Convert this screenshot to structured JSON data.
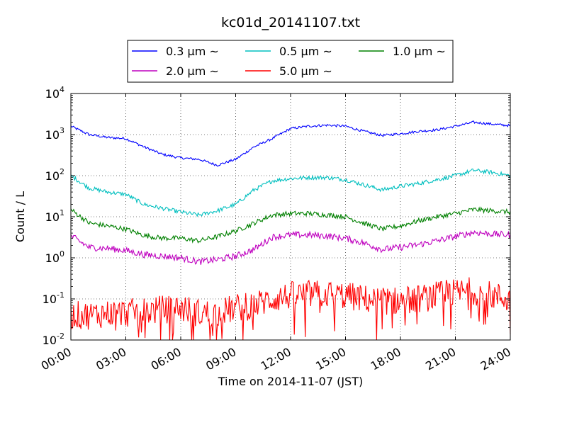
{
  "chart_data": {
    "type": "line",
    "title": "kc01d_20141107.txt",
    "xlabel": "Time on 2014-11-07 (JST)",
    "ylabel": "Count / L",
    "yscale": "log",
    "xlim": [
      "00:00",
      "24:00"
    ],
    "ylim": [
      0.01,
      10000
    ],
    "grid": true,
    "legend_placement": "top (above plot)",
    "x_tick_labels": [
      "00:00",
      "03:00",
      "06:00",
      "09:00",
      "12:00",
      "15:00",
      "18:00",
      "21:00",
      "24:00"
    ],
    "y_tick_labels": [
      {
        "base": "10",
        "exp": "-2"
      },
      {
        "base": "10",
        "exp": "-1"
      },
      {
        "base": "10",
        "exp": "0"
      },
      {
        "base": "10",
        "exp": "1"
      },
      {
        "base": "10",
        "exp": "2"
      },
      {
        "base": "10",
        "exp": "3"
      },
      {
        "base": "10",
        "exp": "4"
      }
    ],
    "x": [
      "00:00",
      "01:00",
      "02:00",
      "03:00",
      "04:00",
      "05:00",
      "06:00",
      "07:00",
      "08:00",
      "09:00",
      "10:00",
      "11:00",
      "12:00",
      "13:00",
      "14:00",
      "15:00",
      "16:00",
      "17:00",
      "18:00",
      "19:00",
      "20:00",
      "21:00",
      "22:00",
      "23:00",
      "24:00"
    ],
    "series": [
      {
        "name": "0.3 μm ~",
        "color": "#0000ff",
        "noise": 0.03,
        "values": [
          1600,
          1000,
          850,
          800,
          500,
          330,
          270,
          250,
          180,
          250,
          500,
          800,
          1400,
          1600,
          1700,
          1600,
          1200,
          950,
          1050,
          1200,
          1300,
          1600,
          2000,
          1800,
          1650
        ]
      },
      {
        "name": "0.5 μm ~",
        "color": "#00bfbf",
        "noise": 0.05,
        "values": [
          100,
          50,
          40,
          35,
          20,
          16,
          13,
          11,
          14,
          20,
          45,
          75,
          85,
          90,
          90,
          80,
          60,
          45,
          55,
          65,
          80,
          100,
          135,
          120,
          100
        ]
      },
      {
        "name": "1.0 μm ~",
        "color": "#008000",
        "noise": 0.06,
        "values": [
          15,
          7,
          6,
          5,
          3.5,
          3,
          3,
          2.6,
          3.3,
          4.5,
          7,
          11,
          12,
          12,
          11,
          10,
          7,
          5,
          6,
          8,
          10,
          12,
          15,
          14,
          13
        ]
      },
      {
        "name": "2.0 μm ~",
        "color": "#bf00bf",
        "noise": 0.08,
        "values": [
          3.4,
          1.8,
          1.7,
          1.5,
          1.2,
          1.1,
          1.0,
          0.8,
          0.9,
          1.1,
          1.6,
          3.2,
          3.6,
          3.6,
          3.4,
          3.0,
          2.3,
          1.6,
          1.8,
          2.1,
          2.6,
          3.3,
          4.2,
          3.8,
          3.6
        ]
      },
      {
        "name": "5.0 μm ~",
        "color": "#ff0000",
        "noise": 0.35,
        "values": [
          0.04,
          0.04,
          0.045,
          0.045,
          0.05,
          0.055,
          0.06,
          0.045,
          0.045,
          0.06,
          0.07,
          0.1,
          0.12,
          0.13,
          0.13,
          0.12,
          0.1,
          0.09,
          0.09,
          0.1,
          0.12,
          0.14,
          0.16,
          0.12,
          0.1
        ]
      }
    ]
  }
}
